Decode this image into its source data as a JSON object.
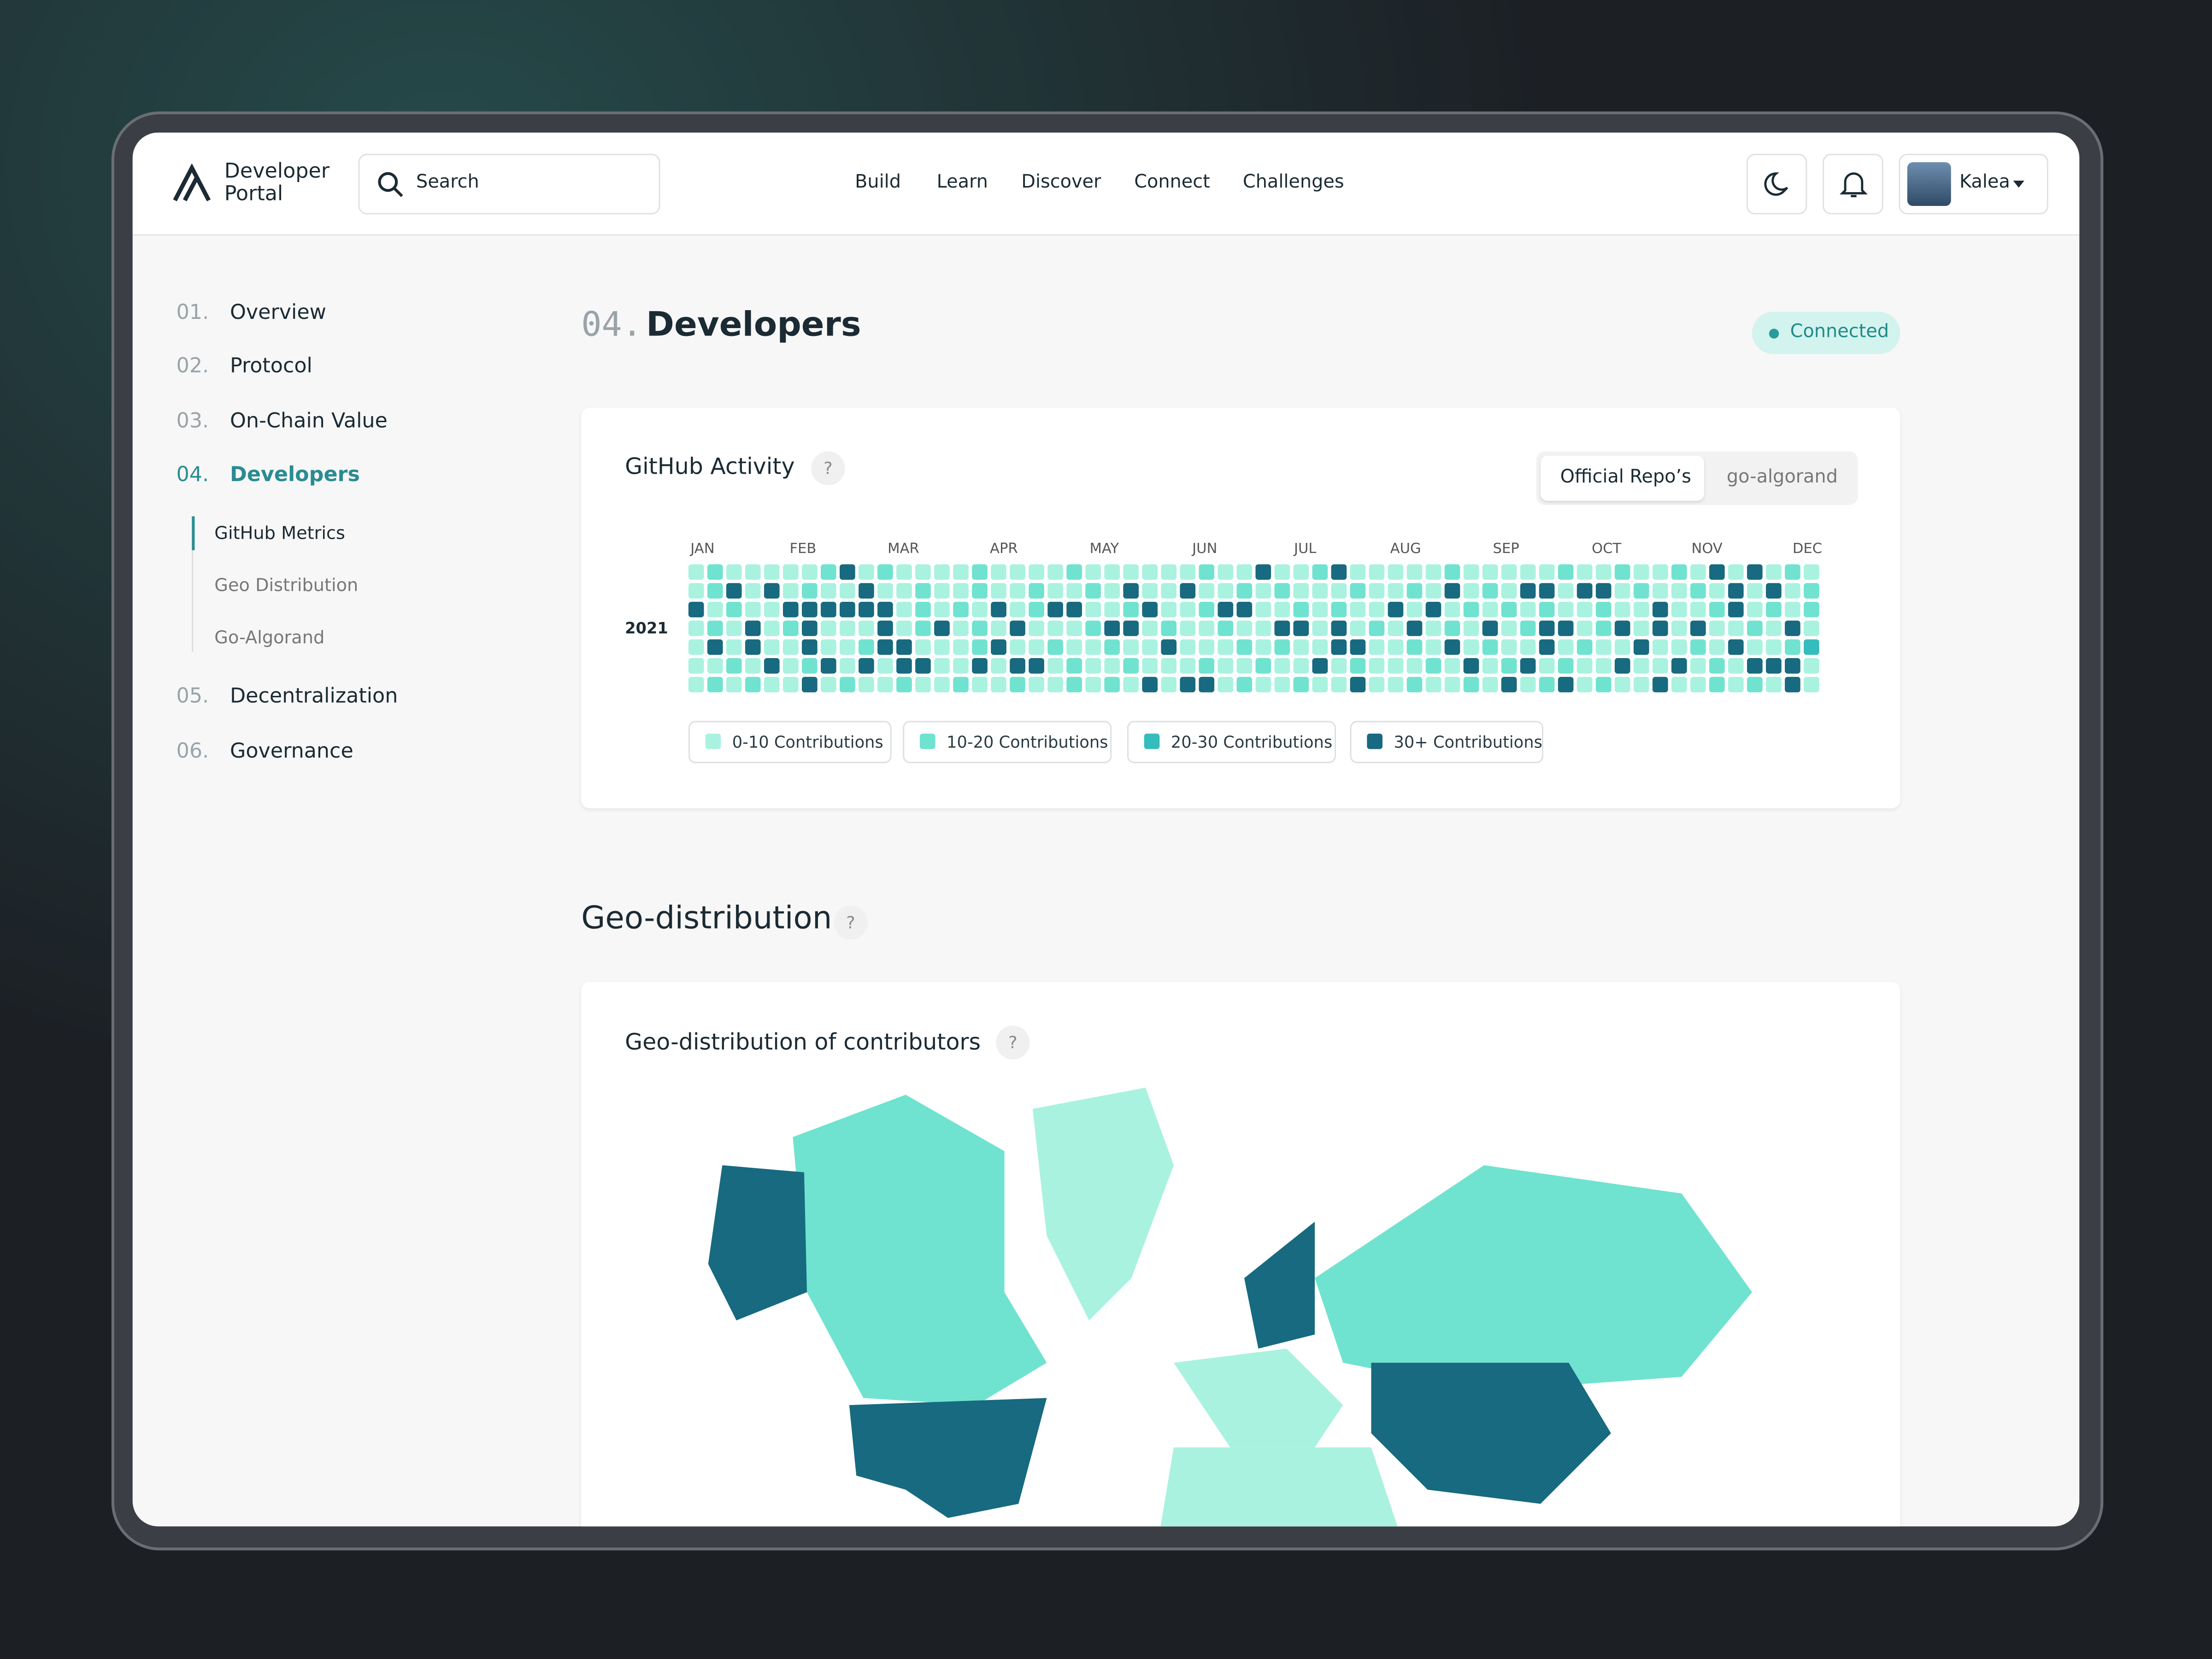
{
  "header": {
    "logo": [
      "Developer",
      "Portal"
    ],
    "search": "Search",
    "nav": [
      "Build",
      "Learn",
      "Discover",
      "Connect",
      "Challenges"
    ],
    "user": "Kalea"
  },
  "sidebar": {
    "items": [
      {
        "number": "01.",
        "label": "Overview"
      },
      {
        "number": "02.",
        "label": "Protocol"
      },
      {
        "number": "03.",
        "label": "On-Chain Value"
      },
      {
        "number": "04.",
        "label": "Developers"
      },
      {
        "number": "05.",
        "label": "Decentralization"
      },
      {
        "number": "06.",
        "label": "Governance"
      }
    ],
    "subitems": [
      "GitHub Metrics",
      "Geo Distribution",
      "Go-Algorand"
    ]
  },
  "section": {
    "number": "04.",
    "title": "Developers",
    "status": "Connected"
  },
  "activity_card": {
    "title": "GitHub Activity",
    "help": "?",
    "tabs": [
      "Official Repo’s",
      "go-algorand"
    ],
    "year": "2021",
    "months": [
      "JAN",
      "FEB",
      "MAR",
      "APR",
      "MAY",
      "JUN",
      "JUL",
      "AUG",
      "SEP",
      "OCT",
      "NOV",
      "DEC"
    ],
    "legend": [
      {
        "label": "0-10 Contributions",
        "color": "#a9f2e0"
      },
      {
        "label": "10-20 Contributions",
        "color": "#6fe3d0"
      },
      {
        "label": "20-30 Contributions",
        "color": "#35bcbc"
      },
      {
        "label": "30+ Contributions",
        "color": "#176a7f"
      }
    ],
    "levels": [
      [
        0,
        1,
        0,
        0,
        0,
        0,
        0,
        1,
        3,
        0,
        1,
        0,
        0,
        0,
        0,
        1,
        0,
        0,
        0,
        0,
        1,
        0,
        0,
        0,
        0,
        0,
        0,
        1,
        0,
        0,
        3,
        0,
        0,
        1,
        3,
        0,
        0,
        0,
        0,
        0,
        1,
        0,
        0,
        0,
        0,
        0,
        1,
        0,
        0,
        1,
        0,
        0,
        1,
        0,
        3,
        0,
        3,
        0,
        1,
        0
      ],
      [
        0,
        1,
        3,
        0,
        3,
        0,
        1,
        0,
        0,
        3,
        0,
        0,
        1,
        0,
        0,
        1,
        0,
        0,
        1,
        0,
        0,
        1,
        0,
        3,
        0,
        0,
        3,
        0,
        0,
        1,
        0,
        1,
        0,
        0,
        0,
        1,
        0,
        0,
        1,
        0,
        3,
        0,
        1,
        0,
        3,
        3,
        0,
        3,
        3,
        0,
        1,
        0,
        0,
        1,
        0,
        3,
        0,
        3,
        0,
        1
      ],
      [
        3,
        0,
        1,
        0,
        0,
        3,
        3,
        3,
        3,
        3,
        3,
        0,
        1,
        0,
        1,
        0,
        3,
        0,
        1,
        3,
        3,
        0,
        0,
        1,
        3,
        0,
        0,
        1,
        3,
        3,
        0,
        0,
        1,
        0,
        1,
        0,
        0,
        3,
        0,
        3,
        0,
        1,
        0,
        1,
        0,
        1,
        0,
        0,
        1,
        0,
        0,
        3,
        0,
        0,
        1,
        3,
        0,
        1,
        0,
        1
      ],
      [
        0,
        1,
        0,
        3,
        0,
        1,
        3,
        0,
        0,
        0,
        3,
        0,
        1,
        3,
        0,
        1,
        0,
        3,
        0,
        0,
        0,
        1,
        3,
        3,
        0,
        1,
        0,
        0,
        1,
        0,
        0,
        3,
        3,
        0,
        3,
        0,
        1,
        0,
        3,
        0,
        1,
        0,
        3,
        0,
        1,
        3,
        3,
        0,
        1,
        3,
        0,
        3,
        0,
        3,
        0,
        0,
        1,
        0,
        3,
        0
      ],
      [
        0,
        3,
        0,
        3,
        0,
        0,
        3,
        0,
        0,
        1,
        3,
        3,
        0,
        0,
        0,
        1,
        3,
        0,
        0,
        1,
        0,
        0,
        1,
        0,
        0,
        3,
        0,
        0,
        0,
        1,
        0,
        1,
        0,
        0,
        3,
        3,
        0,
        0,
        1,
        0,
        3,
        0,
        1,
        0,
        0,
        3,
        0,
        1,
        0,
        0,
        3,
        0,
        0,
        1,
        0,
        3,
        0,
        0,
        1,
        2
      ],
      [
        0,
        0,
        1,
        0,
        3,
        0,
        1,
        3,
        0,
        3,
        0,
        3,
        3,
        0,
        0,
        3,
        0,
        3,
        3,
        0,
        1,
        0,
        0,
        1,
        0,
        0,
        0,
        1,
        0,
        0,
        1,
        0,
        0,
        3,
        0,
        1,
        0,
        0,
        0,
        1,
        0,
        3,
        0,
        1,
        3,
        0,
        1,
        0,
        0,
        3,
        0,
        0,
        3,
        0,
        1,
        0,
        3,
        3,
        3,
        0
      ],
      [
        0,
        1,
        0,
        1,
        0,
        0,
        3,
        0,
        1,
        0,
        0,
        1,
        0,
        0,
        1,
        0,
        0,
        1,
        0,
        0,
        1,
        0,
        1,
        0,
        3,
        0,
        3,
        3,
        0,
        1,
        0,
        0,
        1,
        0,
        0,
        3,
        0,
        0,
        1,
        0,
        0,
        1,
        0,
        3,
        0,
        1,
        3,
        0,
        1,
        0,
        0,
        3,
        0,
        0,
        1,
        0,
        1,
        0,
        3,
        0
      ]
    ]
  },
  "geo": {
    "heading": "Geo-distribution",
    "help": "?",
    "card_title": "Geo-distribution of contributors",
    "card_help": "?"
  }
}
